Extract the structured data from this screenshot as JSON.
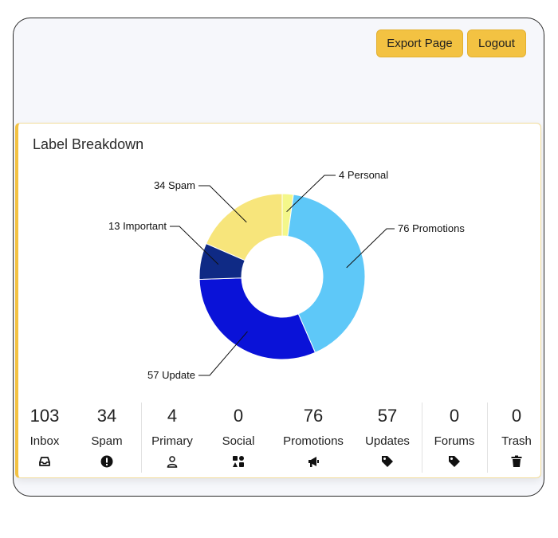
{
  "header": {
    "export_label": "Export Page",
    "logout_label": "Logout"
  },
  "card": {
    "title": "Label Breakdown"
  },
  "chart_data": {
    "type": "pie",
    "title": "",
    "slices": [
      {
        "name": "Personal",
        "value": 4,
        "label": "4 Personal",
        "color": "#f4f78a"
      },
      {
        "name": "Promotions",
        "value": 76,
        "label": "76 Promotions",
        "color": "#5ec8f8"
      },
      {
        "name": "Update",
        "value": 57,
        "label": "57 Update",
        "color": "#0a12d8"
      },
      {
        "name": "Important",
        "value": 13,
        "label": "13 Important",
        "color": "#0f2a85"
      },
      {
        "name": "Spam",
        "value": 34,
        "label": "34 Spam",
        "color": "#f7e57b"
      }
    ]
  },
  "stats": [
    {
      "value": "103",
      "label": "Inbox",
      "icon": "inbox-icon"
    },
    {
      "value": "34",
      "label": "Spam",
      "icon": "alert-icon"
    },
    {
      "value": "4",
      "label": "Primary",
      "icon": "person-icon"
    },
    {
      "value": "0",
      "label": "Social",
      "icon": "social-icon"
    },
    {
      "value": "76",
      "label": "Promotions",
      "icon": "megaphone-icon"
    },
    {
      "value": "57",
      "label": "Updates",
      "icon": "tag-icon"
    },
    {
      "value": "0",
      "label": "Forums",
      "icon": "tag-icon"
    },
    {
      "value": "0",
      "label": "Trash",
      "icon": "trash-icon"
    }
  ]
}
